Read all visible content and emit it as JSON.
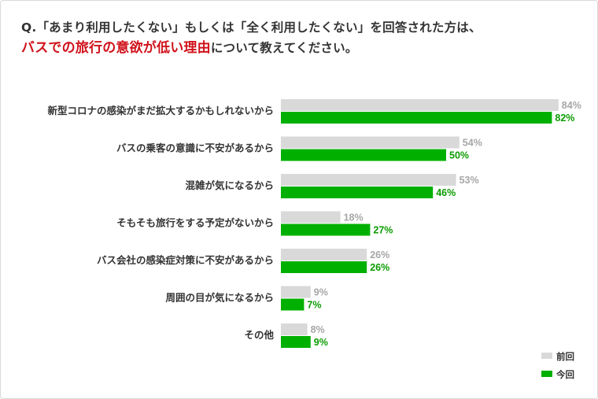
{
  "question": {
    "line1": "Q.「あまり利用したくない」もしくは「全く利用したくない」を回答された方は、",
    "line2_highlight": "バスでの旅行の意欲が低い理由",
    "line2_rest": "について教えてください。"
  },
  "colors": {
    "previous": "#d9d9d9",
    "current": "#00b000",
    "previous_text": "#a6a6a6",
    "current_text": "#0a9c00",
    "highlight": "#d0121b"
  },
  "chart_data": {
    "type": "bar",
    "orientation": "horizontal",
    "categories": [
      "新型コロナの感染がまだ拡大するかもしれないから",
      "バスの乗客の意識に不安があるから",
      "混雑が気になるから",
      "そもそも旅行をする予定がないから",
      "バス会社の感染症対策に不安があるから",
      "周囲の目が気になるから",
      "その他"
    ],
    "series": [
      {
        "name": "前回",
        "values": [
          84,
          54,
          53,
          18,
          26,
          9,
          8
        ],
        "color": "#d9d9d9"
      },
      {
        "name": "今回",
        "values": [
          82,
          50,
          46,
          27,
          26,
          7,
          9
        ],
        "color": "#00b000"
      }
    ],
    "unit": "%",
    "xlim": [
      0,
      100
    ],
    "legend": {
      "position": "bottom-right"
    }
  }
}
